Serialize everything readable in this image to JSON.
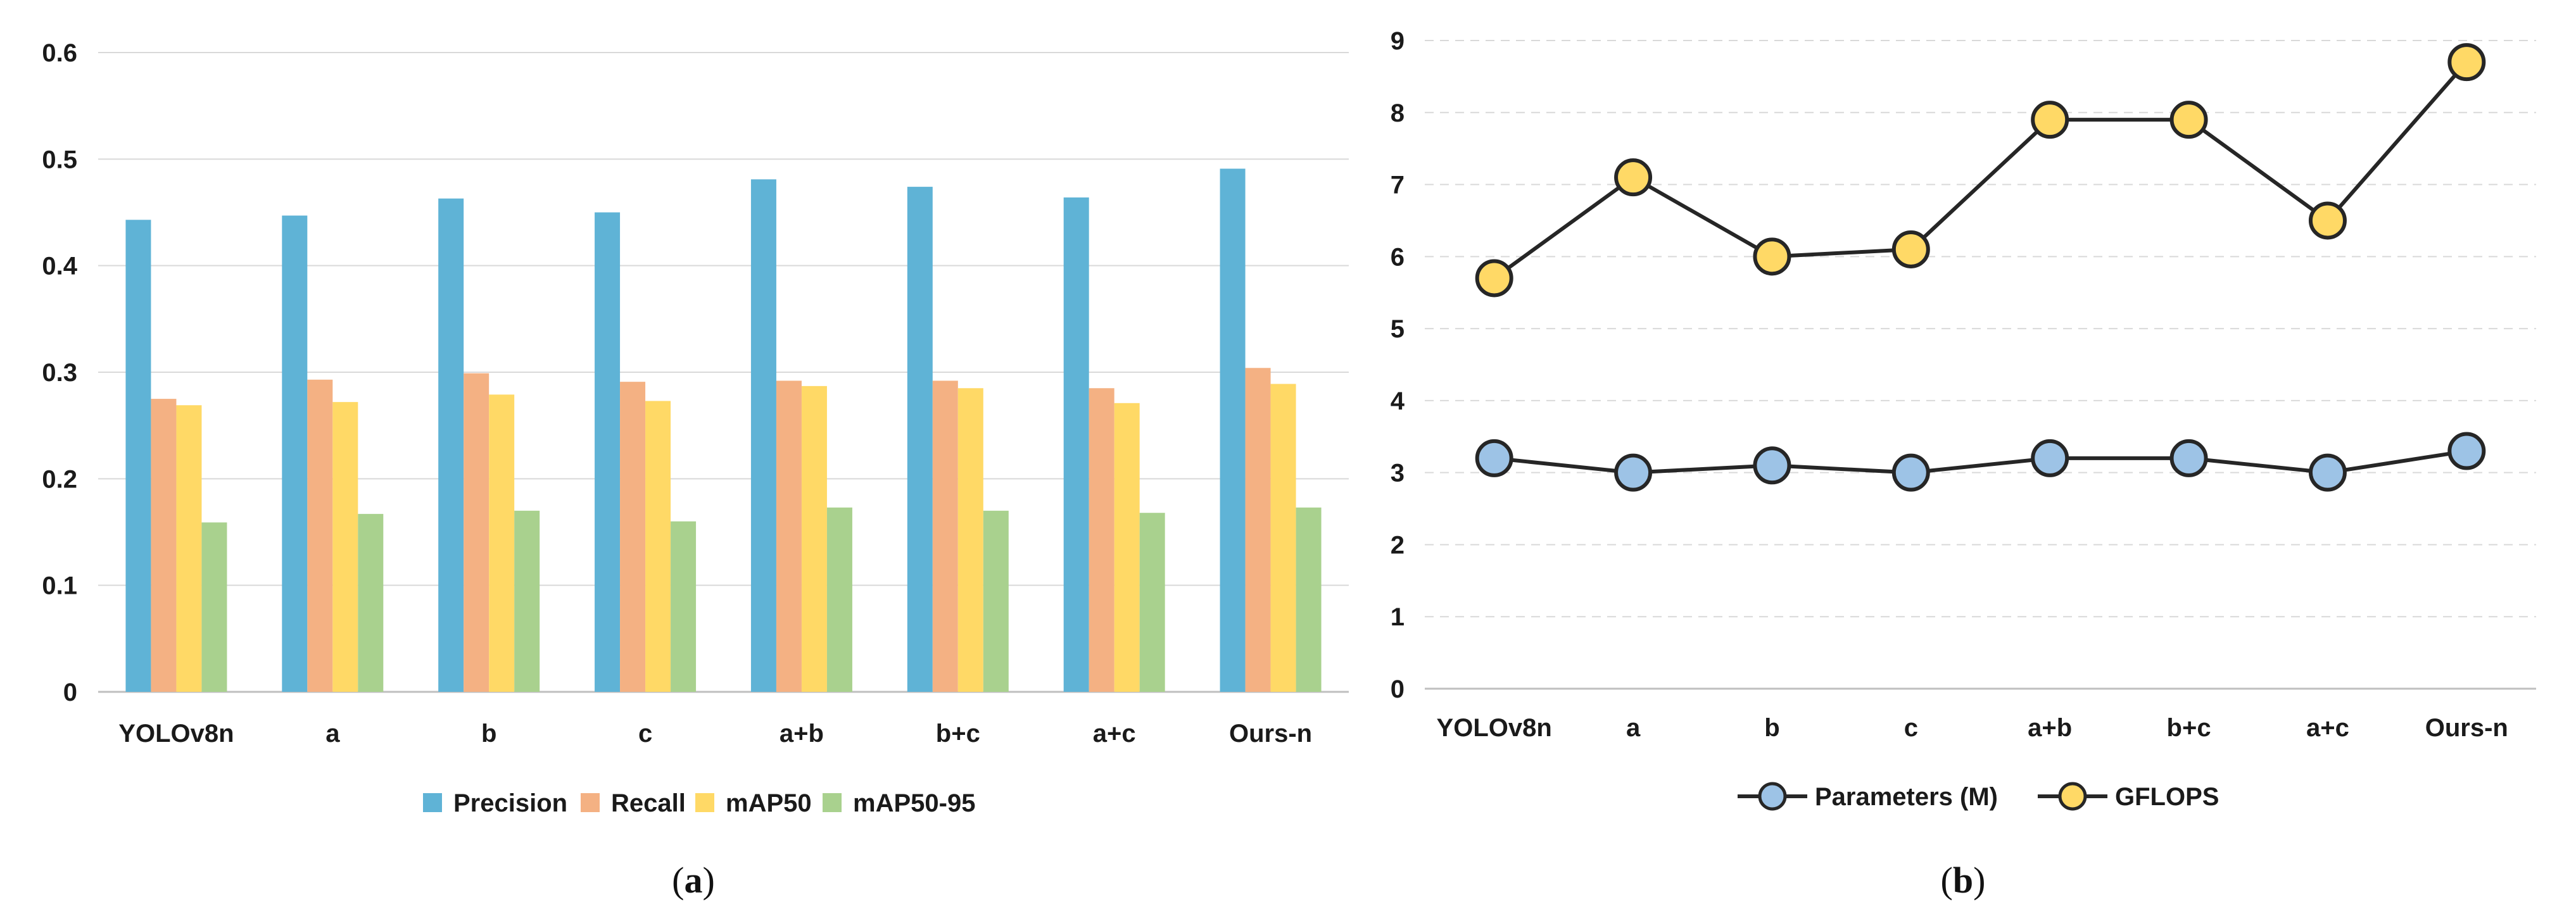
{
  "chart_data": [
    {
      "type": "bar",
      "panel": "a",
      "categories": [
        "YOLOv8n",
        "a",
        "b",
        "c",
        "a+b",
        "b+c",
        "a+c",
        "Ours-n"
      ],
      "series": [
        {
          "name": "Precision",
          "color": "#5FB3D6",
          "values": [
            0.443,
            0.447,
            0.463,
            0.45,
            0.481,
            0.474,
            0.464,
            0.491
          ]
        },
        {
          "name": "Recall",
          "color": "#F4B183",
          "values": [
            0.275,
            0.293,
            0.299,
            0.291,
            0.292,
            0.292,
            0.285,
            0.304
          ]
        },
        {
          "name": "mAP50",
          "color": "#FFD966",
          "values": [
            0.269,
            0.272,
            0.279,
            0.273,
            0.287,
            0.285,
            0.271,
            0.289
          ]
        },
        {
          "name": "mAP50-95",
          "color": "#A9D18E",
          "values": [
            0.159,
            0.167,
            0.17,
            0.16,
            0.173,
            0.17,
            0.168,
            0.173
          ]
        }
      ],
      "yticks": [
        "0",
        "0.1",
        "0.2",
        "0.3",
        "0.4",
        "0.5",
        "0.6"
      ],
      "ylim": [
        0,
        0.6
      ],
      "grid": true,
      "legend": "bottom",
      "title": "",
      "xlabel": "",
      "ylabel": ""
    },
    {
      "type": "line",
      "panel": "b",
      "categories": [
        "YOLOv8n",
        "a",
        "b",
        "c",
        "a+b",
        "b+c",
        "a+c",
        "Ours-n"
      ],
      "series": [
        {
          "name": "Parameters (M)",
          "color": "#9DC3E6",
          "values": [
            3.2,
            3.0,
            3.1,
            3.0,
            3.2,
            3.2,
            3.0,
            3.3
          ]
        },
        {
          "name": "GFLOPS",
          "color": "#FFD966",
          "values": [
            5.7,
            7.1,
            6.0,
            6.1,
            7.9,
            7.9,
            6.5,
            8.7
          ]
        }
      ],
      "yticks": [
        "0",
        "1",
        "2",
        "3",
        "4",
        "5",
        "6",
        "7",
        "8",
        "9"
      ],
      "ylim": [
        0,
        9
      ],
      "grid": true,
      "grid_style": "dashed",
      "legend": "bottom",
      "title": "",
      "xlabel": "",
      "ylabel": ""
    }
  ],
  "captions": {
    "a": "a",
    "b": "b"
  },
  "colors": {
    "axis": "#bfbfbf",
    "grid": "#d9d9d9",
    "line": "#262626",
    "text": "#1a1a1a"
  }
}
